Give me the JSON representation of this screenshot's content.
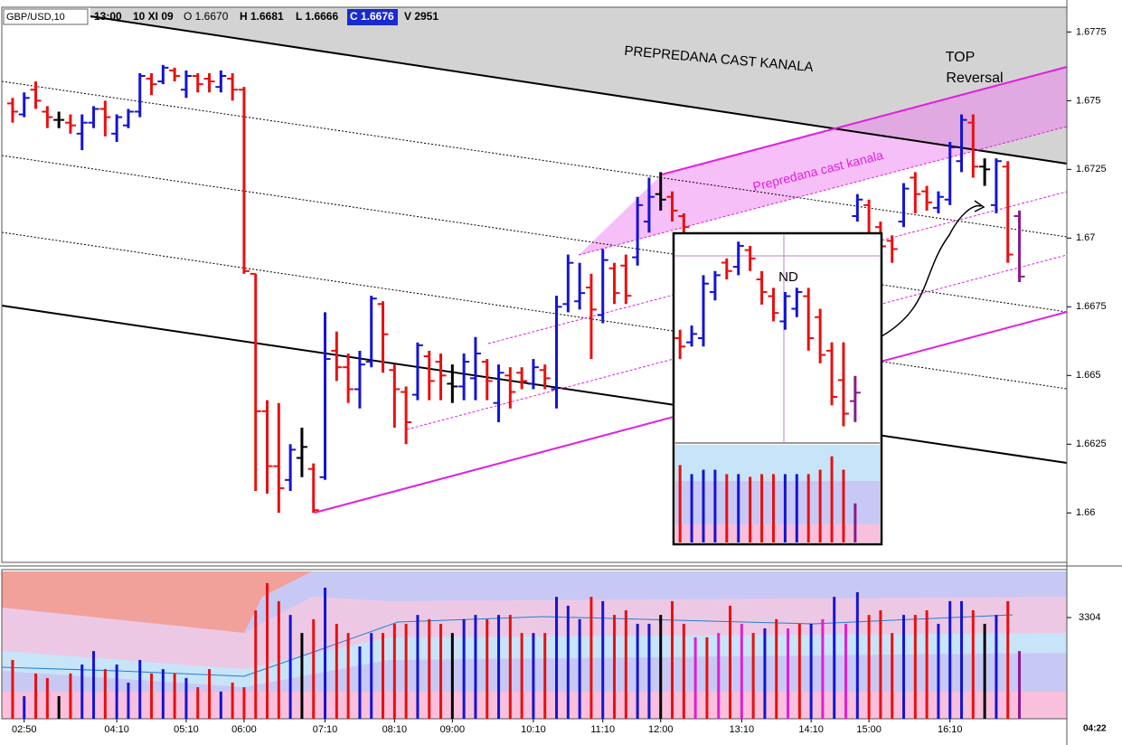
{
  "header": {
    "symbol": "GBP/USD,10",
    "time": "-13:00",
    "date": "10 XI 09",
    "open": "O 1.6670",
    "high": "H 1.6681",
    "low": "L 1.6666",
    "close": "C 1.6676",
    "volume": "V 2951",
    "time_marker": "04:22"
  },
  "chart_data": [
    {
      "type": "ohlc",
      "annotations": [
        "PREPREDANA CAST KANALA",
        "Prepredana cast kanala",
        "TOP",
        "Reversal"
      ],
      "categories": [
        null,
        "02:50",
        null,
        null,
        null,
        null,
        null,
        null,
        null,
        "04:10",
        null,
        null,
        null,
        null,
        null,
        "05:10",
        null,
        null,
        null,
        null,
        "06:00",
        null,
        null,
        null,
        null,
        null,
        null,
        "07:10",
        null,
        null,
        null,
        null,
        null,
        "08:10",
        null,
        null,
        null,
        null,
        "09:00",
        null,
        null,
        null,
        null,
        null,
        null,
        "10:10",
        null,
        null,
        null,
        null,
        null,
        "11:10",
        null,
        null,
        null,
        null,
        "12:00",
        null,
        null,
        null,
        null,
        null,
        null,
        "13:10",
        null,
        null,
        null,
        null,
        null,
        "14:10",
        null,
        null,
        null,
        null,
        "15:00",
        null,
        null,
        null,
        null,
        null,
        null,
        "16:10",
        null,
        null,
        null,
        null,
        null,
        null
      ],
      "open": [
        1.6749,
        1.6745,
        1.6754,
        1.6746,
        1.6743,
        1.6742,
        1.6738,
        1.6742,
        1.6747,
        1.6738,
        1.6741,
        1.6746,
        1.6758,
        1.6757,
        1.6761,
        1.6754,
        1.6759,
        1.6758,
        1.6755,
        1.6758,
        1.6754,
        1.6687,
        1.6637,
        1.6617,
        1.6612,
        1.662,
        1.6616,
        1.6613,
        1.6659,
        1.6653,
        1.6645,
        1.6655,
        1.6676,
        1.6652,
        1.6644,
        1.6643,
        1.6657,
        1.6655,
        1.6647,
        1.6646,
        1.6649,
        1.6655,
        1.664,
        1.665,
        1.6651,
        1.6647,
        1.6652,
        1.6645,
        1.6676,
        1.6677,
        1.6682,
        1.6672,
        1.6689,
        1.669,
        1.6693,
        1.6706,
        1.6716,
        1.6715,
        1.6708,
        null,
        null,
        null,
        null,
        null,
        null,
        null,
        null,
        null,
        null,
        null,
        null,
        null,
        null,
        1.6708,
        1.6712,
        1.6704,
        1.6699,
        1.6706,
        1.6722,
        1.6717,
        1.6711,
        1.6714,
        1.6728,
        1.6742,
        1.6726,
        1.6712,
        1.6726,
        1.6708
      ],
      "high": [
        1.6751,
        1.6753,
        1.6757,
        1.6748,
        1.6746,
        1.6745,
        1.6745,
        1.6748,
        1.675,
        1.6745,
        1.6747,
        1.676,
        1.676,
        1.6763,
        1.6762,
        1.6761,
        1.676,
        1.676,
        1.6761,
        1.676,
        1.6755,
        1.6687,
        1.6641,
        1.664,
        1.6625,
        1.6631,
        1.6618,
        1.6673,
        1.6666,
        1.6658,
        1.6659,
        1.6679,
        1.6677,
        1.6654,
        1.6646,
        1.6662,
        1.6659,
        1.6658,
        1.6654,
        1.6658,
        1.6664,
        1.6656,
        1.6654,
        1.6653,
        1.6653,
        1.6656,
        1.6654,
        1.6679,
        1.6694,
        1.6691,
        1.6687,
        1.6696,
        1.6691,
        1.6694,
        1.6715,
        1.6722,
        1.6724,
        1.6717,
        1.6709,
        null,
        null,
        null,
        null,
        null,
        null,
        null,
        null,
        null,
        null,
        null,
        null,
        null,
        null,
        1.6716,
        1.6714,
        1.6706,
        1.6701,
        1.672,
        1.6724,
        1.6719,
        1.6717,
        1.6735,
        1.6745,
        1.6745,
        1.6729,
        1.6729,
        1.6728,
        1.671
      ],
      "low": [
        1.6742,
        1.6744,
        1.6747,
        1.674,
        1.674,
        1.6738,
        1.6732,
        1.674,
        1.6737,
        1.6735,
        1.674,
        1.6744,
        1.6752,
        1.6756,
        1.6757,
        1.6751,
        1.6753,
        1.6753,
        1.6753,
        1.675,
        1.6687,
        1.6608,
        1.6607,
        1.66,
        1.6608,
        1.6613,
        1.66,
        1.6612,
        1.6648,
        1.664,
        1.6638,
        1.6653,
        1.6651,
        1.6631,
        1.6625,
        1.6641,
        1.6641,
        1.6641,
        1.664,
        1.6641,
        1.6641,
        1.6641,
        1.6633,
        1.6638,
        1.6645,
        1.6645,
        1.6645,
        1.6638,
        1.6673,
        1.6674,
        1.6656,
        1.6669,
        1.6676,
        1.6676,
        1.669,
        1.6702,
        1.671,
        1.6706,
        1.6701,
        null,
        null,
        null,
        null,
        null,
        null,
        null,
        null,
        null,
        null,
        null,
        null,
        null,
        null,
        1.6706,
        1.6694,
        1.6693,
        1.6691,
        1.6704,
        1.6709,
        1.671,
        1.6709,
        1.6712,
        1.6724,
        1.6722,
        1.6719,
        1.6709,
        1.6691,
        1.6684
      ],
      "close": [
        1.6746,
        1.6751,
        1.675,
        1.6744,
        1.6743,
        1.6741,
        1.6742,
        1.6747,
        1.6744,
        1.6744,
        1.6746,
        1.6759,
        1.6756,
        1.6762,
        1.6759,
        1.6759,
        1.6756,
        1.6757,
        1.6759,
        1.6754,
        1.6688,
        1.6637,
        1.6617,
        1.6609,
        1.6623,
        1.6624,
        1.6601,
        1.6656,
        1.6653,
        1.6645,
        1.6654,
        1.6678,
        1.6665,
        1.6645,
        1.6633,
        1.6661,
        1.6648,
        1.665,
        1.6646,
        1.6655,
        1.6658,
        1.6648,
        1.6651,
        1.6644,
        1.6648,
        1.6653,
        1.6649,
        1.6675,
        1.6691,
        1.668,
        1.6674,
        1.6692,
        1.668,
        1.6679,
        1.6712,
        1.6715,
        1.6714,
        1.671,
        1.6704,
        null,
        null,
        null,
        null,
        null,
        null,
        null,
        null,
        null,
        null,
        null,
        null,
        null,
        null,
        1.6714,
        1.67,
        1.6697,
        1.6696,
        1.6718,
        1.6716,
        1.6713,
        1.6715,
        1.6733,
        1.6743,
        1.6726,
        1.6725,
        1.6728,
        1.6694,
        1.6686
      ],
      "volume": [
        1920,
        740,
        1480,
        1330,
        740,
        1480,
        1770,
        2210,
        1620,
        1770,
        1180,
        1920,
        1480,
        1620,
        1480,
        1330,
        1030,
        1620,
        890,
        1180,
        1030,
        3540,
        4430,
        3840,
        3390,
        2800,
        3250,
        4280,
        3100,
        2800,
        2360,
        2800,
        2800,
        3100,
        3100,
        3390,
        3250,
        3100,
        2800,
        3250,
        3390,
        3250,
        3390,
        3390,
        2800,
        2800,
        2800,
        3980,
        3690,
        3250,
        3980,
        3840,
        3390,
        3540,
        3100,
        3100,
        3390,
        3840,
        3100,
        2660,
        2660,
        2800,
        3690,
        3100,
        2800,
        2950,
        3250,
        2950,
        3100,
        3100,
        3250,
        3980,
        3100,
        4130,
        3390,
        3540,
        2800,
        3390,
        3390,
        3540,
        3100,
        3840,
        3840,
        3540,
        3100,
        3390,
        3840,
        2210
      ],
      "colors": [
        "#e81010",
        "#1414d4",
        "#e81010",
        "#e81010",
        "#000000",
        "#e81010",
        "#1414d4",
        "#1414d4",
        "#e81010",
        "#1414d4",
        "#1414d4",
        "#1414d4",
        "#e81010",
        "#1414d4",
        "#e81010",
        "#1414d4",
        "#e81010",
        "#e81010",
        "#1414d4",
        "#e81010",
        "#e81010",
        "#e81010",
        "#e81010",
        "#e81010",
        "#1414d4",
        "#000000",
        "#e81010",
        "#1414d4",
        "#e81010",
        "#e81010",
        "#1414d4",
        "#1414d4",
        "#e81010",
        "#e81010",
        "#e81010",
        "#1414d4",
        "#e81010",
        "#e81010",
        "#000000",
        "#1414d4",
        "#1414d4",
        "#e81010",
        "#1414d4",
        "#e81010",
        "#e81010",
        "#1414d4",
        "#e81010",
        "#1414d4",
        "#1414d4",
        "#1414d4",
        "#e81010",
        "#1414d4",
        "#e81010",
        "#e81010",
        "#1414d4",
        "#1414d4",
        "#000000",
        "#e81010",
        "#e81010",
        "#e020d0",
        "#e81010",
        "#e020d0",
        "#e81010",
        "#e020d0",
        "#e81010",
        "#1414d4",
        "#e81010",
        "#e020d0",
        "#e81010",
        "#1414d4",
        "#e020d0",
        "#1414d4",
        "#e020d0",
        "#1414d4",
        "#e81010",
        "#e81010",
        "#e81010",
        "#1414d4",
        "#e81010",
        "#e81010",
        "#1414d4",
        "#1414d4",
        "#1414d4",
        "#e81010",
        "#000000",
        "#1414d4",
        "#e81010",
        "#8b1a8b"
      ],
      "xlim": [
        -1.09,
        91.1
      ],
      "ylim": [
        1.6582,
        1.6784
      ],
      "yticks": [
        1.66,
        1.6625,
        1.665,
        1.6675,
        1.67,
        1.6725,
        1.675,
        1.6775
      ],
      "volume_ylim": [
        0,
        4810
      ],
      "volume_yticks": [
        3304
      ],
      "grid": false
    },
    {
      "type": "ohlc",
      "annotations": [
        "ND"
      ],
      "open": [
        1.6685,
        1.6684,
        1.6685,
        1.6696,
        1.6703,
        1.6702,
        1.6706,
        1.6699,
        1.6695,
        1.6689,
        1.6692,
        1.6695,
        1.669,
        1.6682,
        1.6675,
        1.667
      ],
      "high": [
        1.6687,
        1.6688,
        1.67,
        1.6701,
        1.6704,
        1.6708,
        1.6707,
        1.6701,
        1.6697,
        1.6696,
        1.6697,
        1.6697,
        1.6692,
        1.6684,
        1.6684,
        1.6676
      ],
      "low": [
        1.668,
        1.6683,
        1.6683,
        1.6694,
        1.6699,
        1.67,
        1.6701,
        1.6693,
        1.6689,
        1.6687,
        1.669,
        1.6682,
        1.6679,
        1.6669,
        1.6664,
        1.6665
      ],
      "close": [
        1.6683,
        1.6686,
        1.6698,
        1.67,
        1.6701,
        1.6707,
        1.6704,
        1.6696,
        1.6691,
        1.6695,
        1.6696,
        1.6685,
        1.6681,
        1.6671,
        1.6667,
        1.6672
      ],
      "volume": [
        3170,
        2800,
        2980,
        2980,
        2800,
        2800,
        2690,
        2800,
        2800,
        2800,
        2800,
        2800,
        2980,
        3530,
        2980,
        1600
      ],
      "colors": [
        "#e81010",
        "#1414d4",
        "#1414d4",
        "#1414d4",
        "#e81010",
        "#1414d4",
        "#e81010",
        "#e81010",
        "#e81010",
        "#1414d4",
        "#1414d4",
        "#e81010",
        "#e81010",
        "#e81010",
        "#e81010",
        "#8b1a8b"
      ],
      "xlim": [
        -0.4,
        17.1
      ],
      "ylim": [
        1.666,
        1.671
      ],
      "volume_ylim": [
        0,
        4000
      ]
    }
  ]
}
